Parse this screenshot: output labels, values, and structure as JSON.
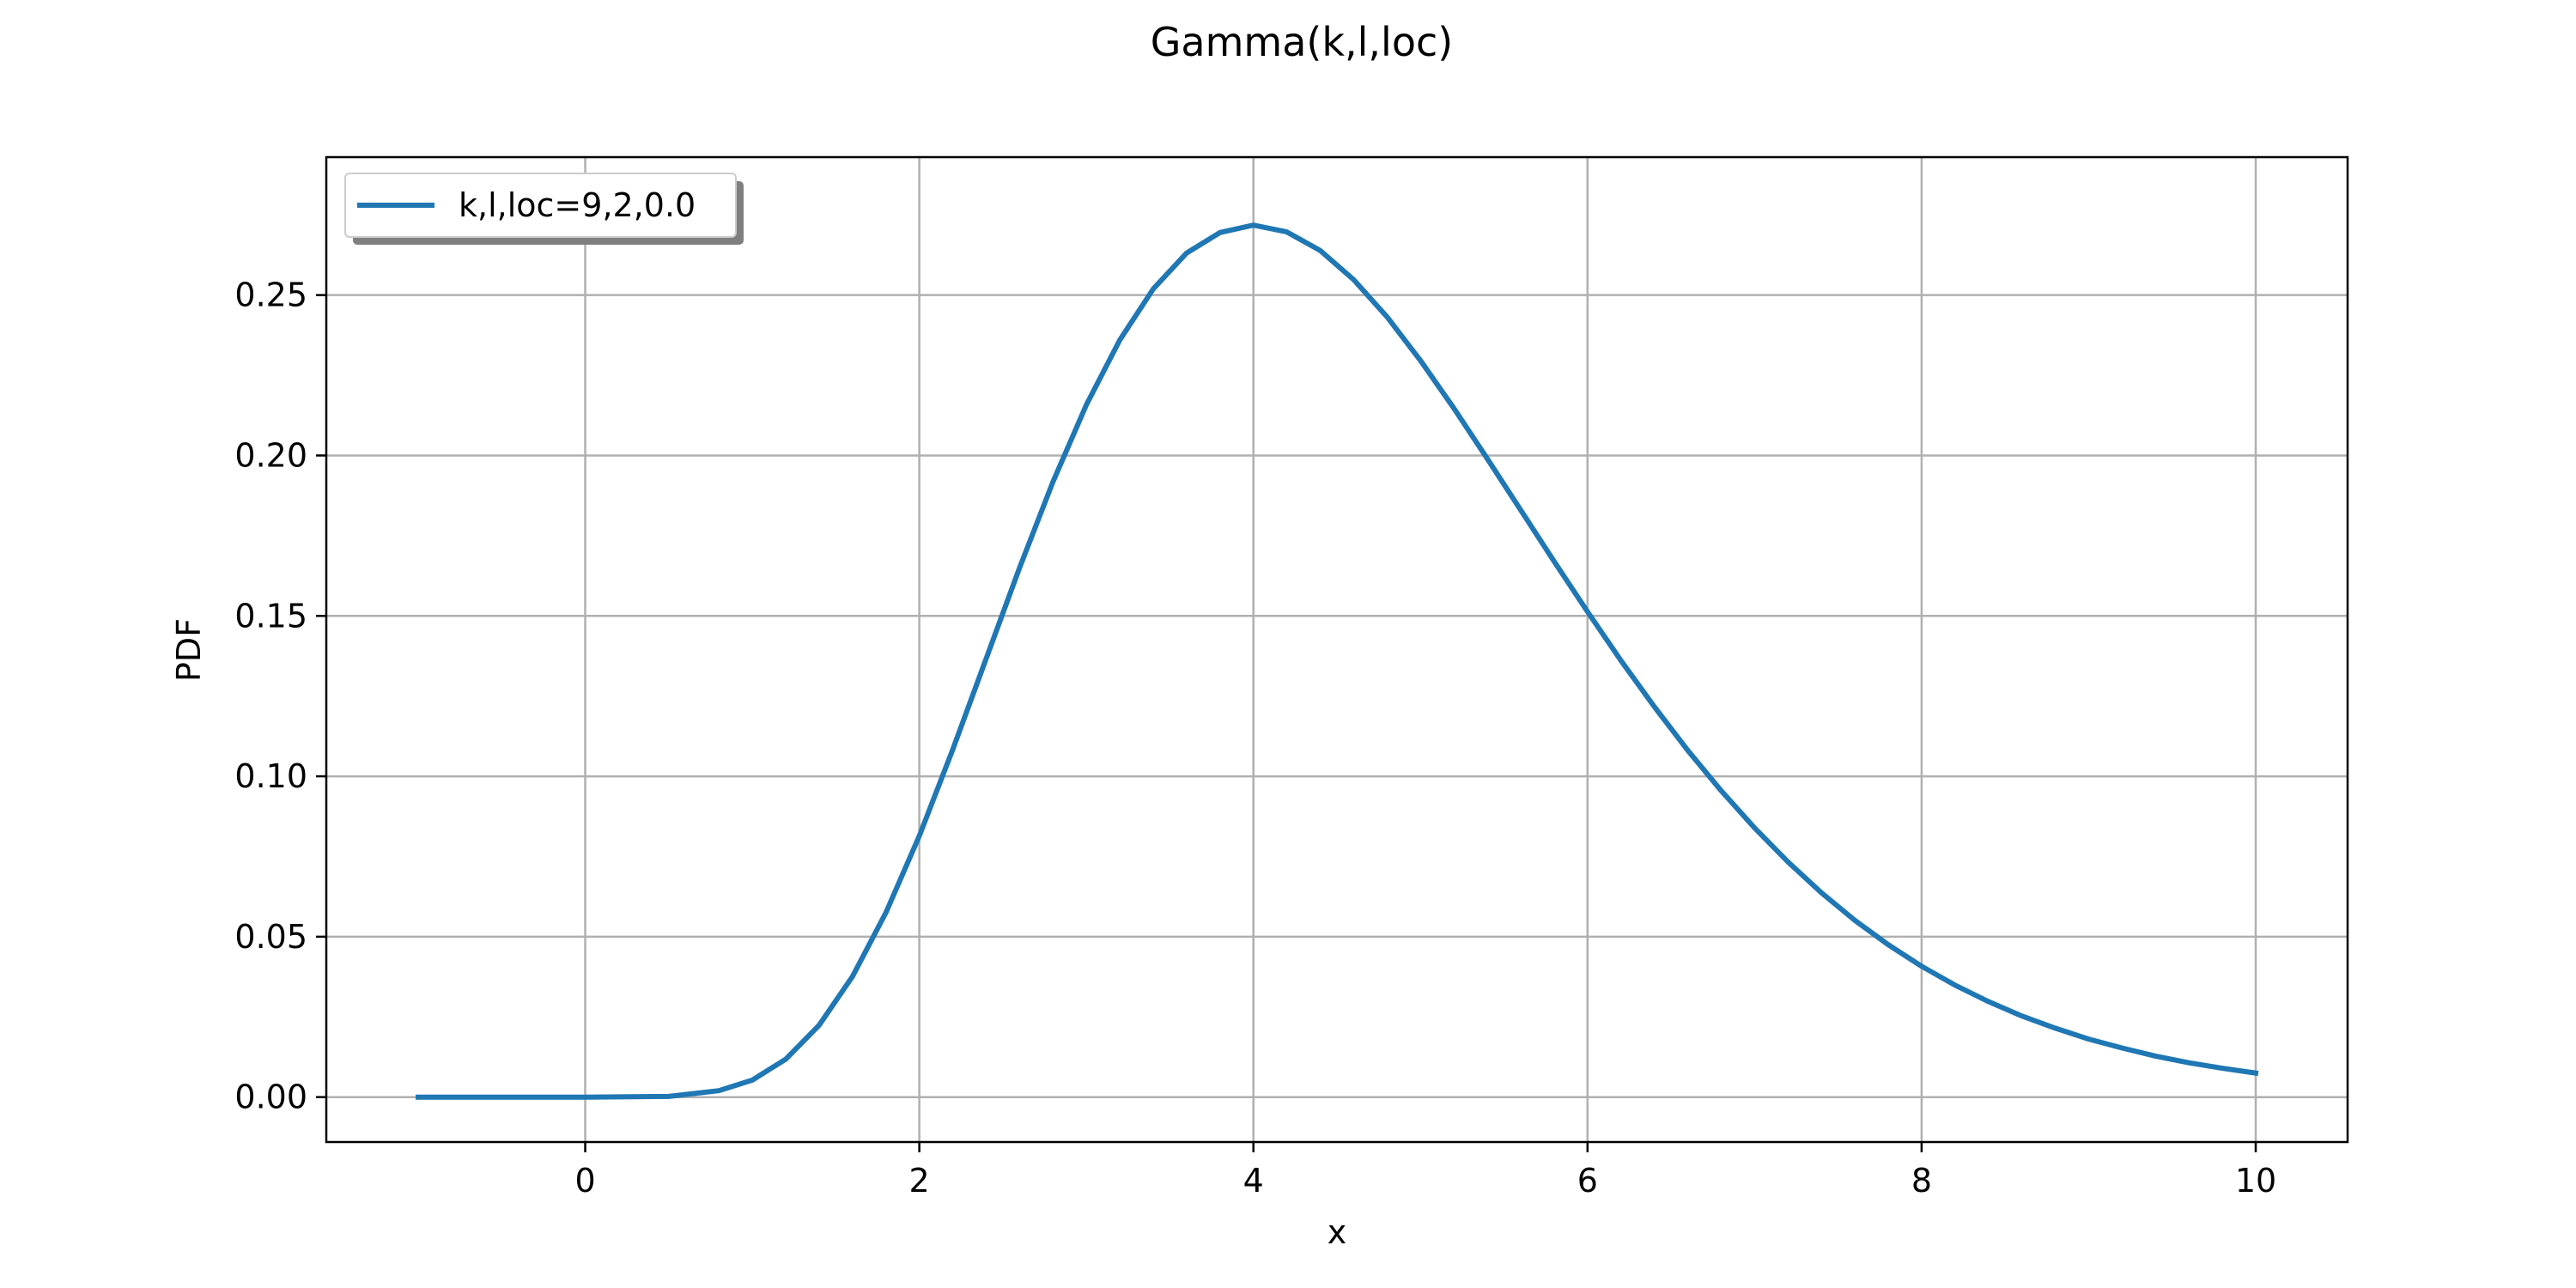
{
  "chart_data": {
    "type": "line",
    "title": "Gamma(k,l,loc)",
    "xlabel": "x",
    "ylabel": "PDF",
    "xlim": [
      -1.55,
      10.55
    ],
    "ylim": [
      -0.014,
      0.293
    ],
    "xticks": [
      0,
      2,
      4,
      6,
      8,
      10
    ],
    "xtick_labels": [
      "0",
      "2",
      "4",
      "6",
      "8",
      "10"
    ],
    "yticks": [
      0.0,
      0.05,
      0.1,
      0.15,
      0.2,
      0.25
    ],
    "ytick_labels": [
      "0.00",
      "0.05",
      "0.10",
      "0.15",
      "0.20",
      "0.25"
    ],
    "grid": true,
    "legend_position": "top-left",
    "series": [
      {
        "name": "k,l,loc=9,2,0.0",
        "color": "#1f77b4",
        "x": [
          -1.0,
          -0.5,
          0.0,
          0.5,
          0.8,
          1.0,
          1.2,
          1.4,
          1.6,
          1.8,
          2.0,
          2.2,
          2.4,
          2.6,
          2.8,
          3.0,
          3.2,
          3.4,
          3.6,
          3.8,
          4.0,
          4.2,
          4.4,
          4.6,
          4.8,
          5.0,
          5.2,
          5.4,
          5.6,
          5.8,
          6.0,
          6.2,
          6.4,
          6.6,
          6.8,
          7.0,
          7.2,
          7.4,
          7.6,
          7.8,
          8.0,
          8.2,
          8.4,
          8.6,
          8.8,
          9.0,
          9.2,
          9.4,
          9.6,
          9.8,
          10.0
        ],
        "y": [
          0.0,
          0.0,
          0.0,
          0.0002,
          0.002,
          0.0053,
          0.0118,
          0.0224,
          0.0376,
          0.0575,
          0.0814,
          0.1083,
          0.1367,
          0.165,
          0.1918,
          0.2158,
          0.236,
          0.2519,
          0.2631,
          0.2695,
          0.2718,
          0.2697,
          0.2639,
          0.2548,
          0.2432,
          0.2296,
          0.2147,
          0.199,
          0.183,
          0.167,
          0.1513,
          0.1361,
          0.1217,
          0.1081,
          0.0955,
          0.0839,
          0.0733,
          0.0637,
          0.0551,
          0.0475,
          0.0408,
          0.0349,
          0.0298,
          0.0253,
          0.0215,
          0.0181,
          0.0153,
          0.0128,
          0.0107,
          0.009,
          0.0075
        ]
      }
    ]
  }
}
